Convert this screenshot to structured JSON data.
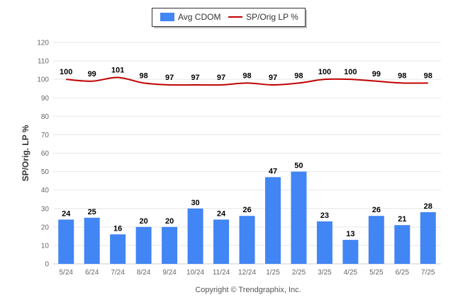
{
  "chart_data": {
    "type": "bar",
    "categories": [
      "5/24",
      "6/24",
      "7/24",
      "8/24",
      "9/24",
      "10/24",
      "11/24",
      "12/24",
      "1/25",
      "2/25",
      "3/25",
      "4/25",
      "5/25",
      "6/25",
      "7/25"
    ],
    "series": [
      {
        "name": "Avg CDOM",
        "type": "bar",
        "color": "#4285f4",
        "values": [
          24,
          25,
          16,
          20,
          20,
          30,
          24,
          26,
          47,
          50,
          23,
          13,
          26,
          21,
          28
        ]
      },
      {
        "name": "SP/Orig LP %",
        "type": "line",
        "color": "#c00000",
        "values": [
          100,
          99,
          101,
          98,
          97,
          97,
          97,
          98,
          97,
          98,
          100,
          100,
          99,
          98,
          98
        ]
      }
    ],
    "ylabel": "SP/Orig. LP %",
    "ylim": [
      0,
      120
    ],
    "yticks": [
      0,
      10,
      20,
      30,
      40,
      50,
      60,
      70,
      80,
      90,
      100,
      110,
      120
    ],
    "grid": true,
    "legend": "top-center"
  },
  "credit": "Copyright © Trendgraphix, Inc."
}
